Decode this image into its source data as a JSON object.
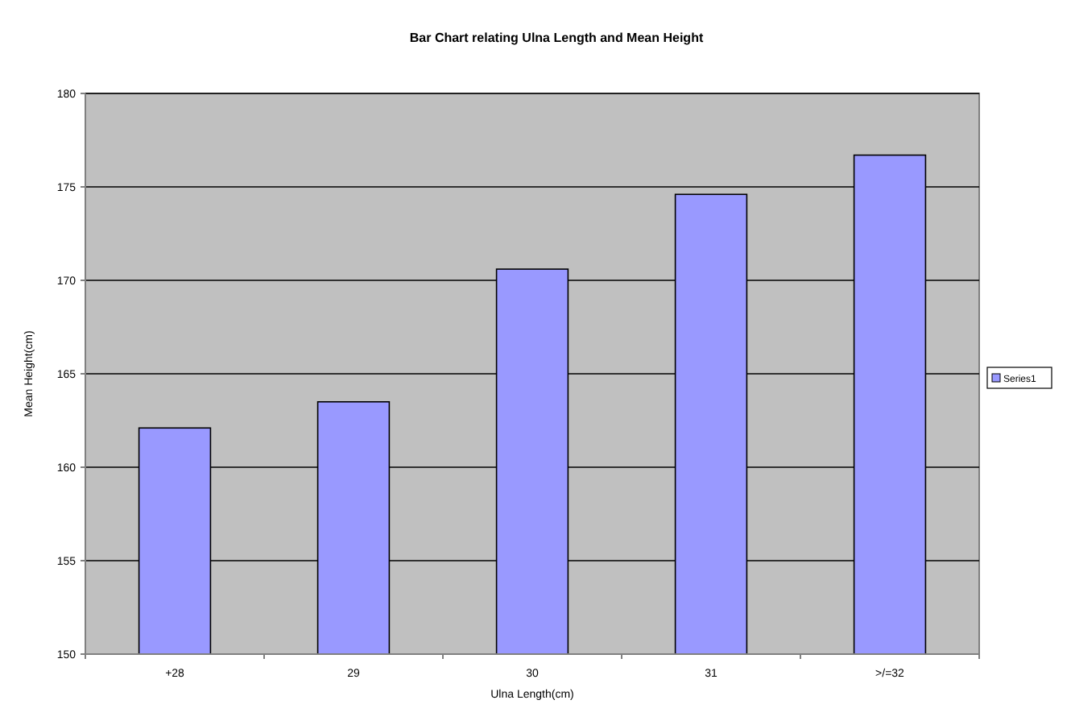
{
  "chart_data": {
    "type": "bar",
    "title": "Bar Chart relating Ulna Length and Mean Height",
    "xlabel": "Ulna Length(cm)",
    "ylabel": "Mean Height(cm)",
    "categories": [
      "+28",
      "29",
      "30",
      "31",
      ">/=32"
    ],
    "series": [
      {
        "name": "Series1",
        "color": "#9999ff",
        "values": [
          162.1,
          163.5,
          170.6,
          174.6,
          176.7
        ]
      }
    ],
    "ylim": [
      150,
      180
    ],
    "yticks": [
      150,
      155,
      160,
      165,
      170,
      175,
      180
    ],
    "grid": "y",
    "legend": "right"
  }
}
